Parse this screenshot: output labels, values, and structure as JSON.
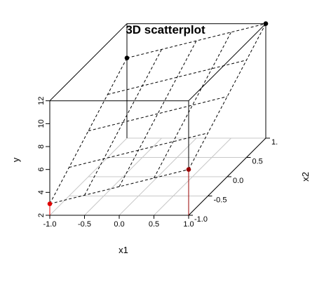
{
  "chart_data": {
    "type": "scatter",
    "title": "3D scatterplot",
    "xlabel": "x1",
    "ylabel": "y",
    "zlabel": "x2",
    "xlim": [
      -1.0,
      1.0
    ],
    "zlim": [
      -1.0,
      1.0
    ],
    "ylim": [
      2,
      12
    ],
    "x_ticks": [
      "-1.0",
      "-0.5",
      "0.0",
      "0.5",
      "1.0"
    ],
    "z_ticks": [
      "-1.0",
      "-0.5",
      "0.0",
      "0.5",
      "1."
    ],
    "y_ticks": [
      "2",
      "4",
      "6",
      "8",
      "10",
      "12"
    ],
    "points": [
      {
        "x1": -1.0,
        "x2": -1.0,
        "y": 3.0,
        "color": "#e00000"
      },
      {
        "x1": 1.0,
        "x2": -1.0,
        "y": 6.0,
        "color": "#9a0000"
      },
      {
        "x1": -1.0,
        "x2": 1.0,
        "y": 9.0,
        "color": "#000000"
      },
      {
        "x1": 1.0,
        "x2": 1.0,
        "y": 12.0,
        "color": "#000000"
      }
    ],
    "plane": {
      "intercept": 7.5,
      "coef_x1": 1.5,
      "coef_x2": 3.0
    },
    "grid": true
  }
}
